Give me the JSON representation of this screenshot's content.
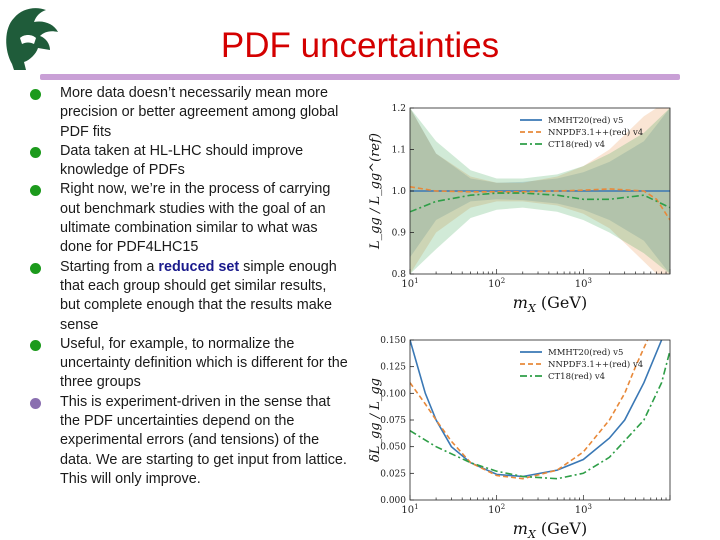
{
  "title": "PDF uncertainties",
  "logo": {
    "icon": "spartan-helmet-icon",
    "color": "#1f5c3a"
  },
  "bullets": [
    {
      "text": "More data doesn’t necessarily mean more precision or better agreement among global PDF fits"
    },
    {
      "text": "Data taken at HL-LHC should improve knowledge of PDFs"
    },
    {
      "text": "Right now, we’re in the process of carrying out benchmark studies with the goal of an ultimate combination similar to what was done for PDF4LHC15"
    },
    {
      "pre": "Starting from a ",
      "em": "reduced set",
      "post": " simple enough that each group should get similar results, but complete enough that the results make sense"
    },
    {
      "text": "Useful, for example, to normalize the uncertainty definition which is different for the three groups"
    },
    {
      "text": "This is experiment-driven in the sense that the PDF uncertainties depend on the experimental errors (and tensions) of the data. We are starting to get input from lattice. This will only improve."
    }
  ],
  "chart_data": [
    {
      "type": "area",
      "xlabel": "m_X (GeV)",
      "ylabel": "L_gg / L_gg^(ref)",
      "xscale": "log",
      "xlim": [
        10,
        10000
      ],
      "ylim": [
        0.8,
        1.2
      ],
      "yticks": [
        "0.8",
        "0.9",
        "1.0",
        "1.1",
        "1.2"
      ],
      "legend_position": "top-right",
      "series": [
        {
          "name": "MMHT20(red) v5",
          "color": "#3a78b5",
          "style": "solid",
          "x": [
            10,
            20,
            50,
            100,
            200,
            500,
            1000,
            2000,
            5000,
            10000
          ],
          "y": [
            1.0,
            1.0,
            1.0,
            1.0,
            1.0,
            1.0,
            1.0,
            1.0,
            1.0,
            1.0
          ],
          "band_lower": [
            0.84,
            0.93,
            0.975,
            0.98,
            0.978,
            0.97,
            0.955,
            0.93,
            0.88,
            0.8
          ],
          "band_upper": [
            1.2,
            1.09,
            1.03,
            1.02,
            1.022,
            1.03,
            1.045,
            1.07,
            1.12,
            1.2
          ]
        },
        {
          "name": "NNPDF3.1++(red) v4",
          "color": "#e8893a",
          "style": "dashed",
          "x": [
            10,
            20,
            50,
            100,
            200,
            500,
            1000,
            2000,
            5000,
            7000,
            10000
          ],
          "y": [
            1.01,
            1.0,
            0.998,
            0.998,
            0.998,
            1.0,
            1.002,
            1.005,
            1.0,
            0.98,
            0.93
          ],
          "band_lower": [
            0.8,
            0.9,
            0.96,
            0.975,
            0.975,
            0.965,
            0.945,
            0.91,
            0.83,
            0.8,
            0.8
          ],
          "band_upper": [
            1.2,
            1.09,
            1.035,
            1.02,
            1.02,
            1.035,
            1.06,
            1.1,
            1.18,
            1.2,
            1.2
          ]
        },
        {
          "name": "CT18(red) v4",
          "color": "#2e9e47",
          "style": "dashdot",
          "x": [
            10,
            20,
            50,
            100,
            200,
            500,
            1000,
            2000,
            5000,
            10000
          ],
          "y": [
            0.95,
            0.975,
            0.99,
            0.995,
            0.995,
            0.99,
            0.98,
            0.98,
            0.99,
            0.96
          ],
          "band_lower": [
            0.8,
            0.86,
            0.935,
            0.955,
            0.96,
            0.95,
            0.93,
            0.9,
            0.85,
            0.8
          ],
          "band_upper": [
            1.2,
            1.12,
            1.05,
            1.03,
            1.03,
            1.04,
            1.06,
            1.09,
            1.14,
            1.2
          ]
        }
      ]
    },
    {
      "type": "line",
      "xlabel": "m_X (GeV)",
      "ylabel": "δL_gg / L_gg",
      "xscale": "log",
      "xlim": [
        10,
        10000
      ],
      "ylim": [
        0,
        0.15
      ],
      "yticks": [
        "0.000",
        "0.025",
        "0.050",
        "0.075",
        "0.100",
        "0.125",
        "0.150"
      ],
      "legend_position": "top-right",
      "series": [
        {
          "name": "MMHT20(red) v5",
          "color": "#3a78b5",
          "style": "solid",
          "x": [
            10,
            15,
            20,
            30,
            50,
            100,
            200,
            500,
            1000,
            2000,
            3000,
            5000,
            8000
          ],
          "y": [
            0.15,
            0.1,
            0.075,
            0.05,
            0.035,
            0.024,
            0.022,
            0.028,
            0.038,
            0.058,
            0.075,
            0.11,
            0.15
          ]
        },
        {
          "name": "NNPDF3.1++(red) v4",
          "color": "#e8893a",
          "style": "dashed",
          "x": [
            10,
            15,
            20,
            30,
            50,
            100,
            200,
            500,
            1000,
            2000,
            3000,
            4000,
            5500
          ],
          "y": [
            0.11,
            0.09,
            0.075,
            0.055,
            0.035,
            0.023,
            0.02,
            0.028,
            0.045,
            0.075,
            0.1,
            0.125,
            0.15
          ]
        },
        {
          "name": "CT18(red) v4",
          "color": "#2e9e47",
          "style": "dashdot",
          "x": [
            10,
            20,
            50,
            100,
            200,
            500,
            1000,
            2000,
            5000,
            8000,
            10000
          ],
          "y": [
            0.065,
            0.05,
            0.035,
            0.027,
            0.022,
            0.02,
            0.025,
            0.04,
            0.075,
            0.11,
            0.14
          ]
        }
      ]
    }
  ]
}
